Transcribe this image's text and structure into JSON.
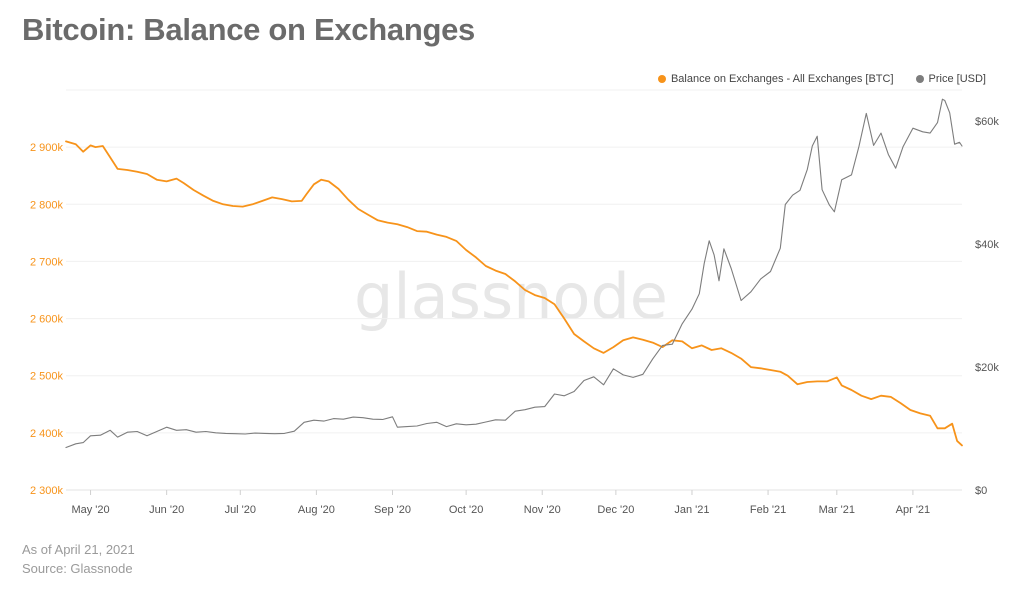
{
  "title": "Bitcoin: Balance on Exchanges",
  "legend": [
    {
      "label": "Balance on Exchanges - All Exchanges [BTC]",
      "color": "#f7931a"
    },
    {
      "label": "Price [USD]",
      "color": "#7d7d7d"
    }
  ],
  "watermark": "glassnode",
  "footer": {
    "as_of": "As of April 21, 2021",
    "source": "Source: Glassnode"
  },
  "chart_data": {
    "type": "line",
    "x_tick_labels": [
      "May '20",
      "Jun '20",
      "Jul '20",
      "Aug '20",
      "Sep '20",
      "Oct '20",
      "Nov '20",
      "Dec '20",
      "Jan '21",
      "Feb '21",
      "Mar '21",
      "Apr '21"
    ],
    "x_tick_dates": [
      "2020-05-01",
      "2020-06-01",
      "2020-07-01",
      "2020-08-01",
      "2020-09-01",
      "2020-10-01",
      "2020-11-01",
      "2020-12-01",
      "2021-01-01",
      "2021-02-01",
      "2021-03-01",
      "2021-04-01"
    ],
    "xlim": [
      "2020-04-21",
      "2021-04-21"
    ],
    "y_left": {
      "ticks": [
        "2 300k",
        "2 400k",
        "2 500k",
        "2 600k",
        "2 700k",
        "2 800k",
        "2 900k"
      ],
      "ylim": [
        2300000,
        3000000
      ],
      "color": "#f7931a"
    },
    "y_right": {
      "ticks": [
        "$0",
        "$20k",
        "$40k",
        "$60k"
      ],
      "ylim": [
        0,
        65000
      ],
      "color": "#555555"
    },
    "grid": true,
    "legend_position": "top-right",
    "series": [
      {
        "name": "Balance on Exchanges - All Exchanges [BTC]",
        "axis": "left",
        "color": "#f7931a",
        "points": [
          [
            "2020-04-21",
            2910000
          ],
          [
            "2020-04-25",
            2905000
          ],
          [
            "2020-04-28",
            2892000
          ],
          [
            "2020-05-01",
            2903000
          ],
          [
            "2020-05-03",
            2900000
          ],
          [
            "2020-05-06",
            2902000
          ],
          [
            "2020-05-09",
            2882000
          ],
          [
            "2020-05-12",
            2862000
          ],
          [
            "2020-05-16",
            2860000
          ],
          [
            "2020-05-20",
            2857000
          ],
          [
            "2020-05-24",
            2853000
          ],
          [
            "2020-05-28",
            2843000
          ],
          [
            "2020-06-01",
            2840000
          ],
          [
            "2020-06-05",
            2845000
          ],
          [
            "2020-06-08",
            2837000
          ],
          [
            "2020-06-12",
            2825000
          ],
          [
            "2020-06-16",
            2815000
          ],
          [
            "2020-06-20",
            2806000
          ],
          [
            "2020-06-24",
            2800000
          ],
          [
            "2020-06-28",
            2797000
          ],
          [
            "2020-07-02",
            2796000
          ],
          [
            "2020-07-06",
            2800000
          ],
          [
            "2020-07-10",
            2806000
          ],
          [
            "2020-07-14",
            2812000
          ],
          [
            "2020-07-18",
            2809000
          ],
          [
            "2020-07-22",
            2805000
          ],
          [
            "2020-07-26",
            2806000
          ],
          [
            "2020-07-28",
            2818000
          ],
          [
            "2020-07-31",
            2835000
          ],
          [
            "2020-08-03",
            2843000
          ],
          [
            "2020-08-06",
            2840000
          ],
          [
            "2020-08-10",
            2827000
          ],
          [
            "2020-08-14",
            2808000
          ],
          [
            "2020-08-18",
            2792000
          ],
          [
            "2020-08-22",
            2782000
          ],
          [
            "2020-08-26",
            2772000
          ],
          [
            "2020-08-30",
            2768000
          ],
          [
            "2020-09-03",
            2765000
          ],
          [
            "2020-09-07",
            2760000
          ],
          [
            "2020-09-11",
            2753000
          ],
          [
            "2020-09-15",
            2752000
          ],
          [
            "2020-09-19",
            2747000
          ],
          [
            "2020-09-23",
            2743000
          ],
          [
            "2020-09-27",
            2736000
          ],
          [
            "2020-10-01",
            2720000
          ],
          [
            "2020-10-05",
            2707000
          ],
          [
            "2020-10-09",
            2692000
          ],
          [
            "2020-10-13",
            2684000
          ],
          [
            "2020-10-17",
            2678000
          ],
          [
            "2020-10-21",
            2665000
          ],
          [
            "2020-10-25",
            2650000
          ],
          [
            "2020-10-29",
            2641000
          ],
          [
            "2020-11-02",
            2636000
          ],
          [
            "2020-11-06",
            2625000
          ],
          [
            "2020-11-10",
            2600000
          ],
          [
            "2020-11-14",
            2573000
          ],
          [
            "2020-11-18",
            2560000
          ],
          [
            "2020-11-22",
            2548000
          ],
          [
            "2020-11-26",
            2540000
          ],
          [
            "2020-11-30",
            2550000
          ],
          [
            "2020-12-04",
            2562000
          ],
          [
            "2020-12-08",
            2567000
          ],
          [
            "2020-12-12",
            2563000
          ],
          [
            "2020-12-16",
            2558000
          ],
          [
            "2020-12-20",
            2550000
          ],
          [
            "2020-12-24",
            2562000
          ],
          [
            "2020-12-28",
            2560000
          ],
          [
            "2021-01-01",
            2548000
          ],
          [
            "2021-01-05",
            2553000
          ],
          [
            "2021-01-09",
            2545000
          ],
          [
            "2021-01-13",
            2548000
          ],
          [
            "2021-01-17",
            2540000
          ],
          [
            "2021-01-21",
            2530000
          ],
          [
            "2021-01-25",
            2515000
          ],
          [
            "2021-01-29",
            2513000
          ],
          [
            "2021-02-02",
            2510000
          ],
          [
            "2021-02-06",
            2507000
          ],
          [
            "2021-02-09",
            2500000
          ],
          [
            "2021-02-13",
            2485000
          ],
          [
            "2021-02-17",
            2489000
          ],
          [
            "2021-02-21",
            2490000
          ],
          [
            "2021-02-25",
            2490000
          ],
          [
            "2021-03-01",
            2497000
          ],
          [
            "2021-03-03",
            2483000
          ],
          [
            "2021-03-07",
            2475000
          ],
          [
            "2021-03-11",
            2465000
          ],
          [
            "2021-03-15",
            2459000
          ],
          [
            "2021-03-19",
            2465000
          ],
          [
            "2021-03-23",
            2463000
          ],
          [
            "2021-03-27",
            2452000
          ],
          [
            "2021-03-31",
            2440000
          ],
          [
            "2021-04-04",
            2434000
          ],
          [
            "2021-04-08",
            2430000
          ],
          [
            "2021-04-11",
            2408000
          ],
          [
            "2021-04-14",
            2408000
          ],
          [
            "2021-04-17",
            2416000
          ],
          [
            "2021-04-19",
            2386000
          ],
          [
            "2021-04-21",
            2378000
          ]
        ]
      },
      {
        "name": "Price [USD]",
        "axis": "right",
        "color": "#7d7d7d",
        "points": [
          [
            "2020-04-21",
            6900
          ],
          [
            "2020-04-25",
            7500
          ],
          [
            "2020-04-28",
            7700
          ],
          [
            "2020-05-01",
            8800
          ],
          [
            "2020-05-05",
            8900
          ],
          [
            "2020-05-09",
            9700
          ],
          [
            "2020-05-12",
            8600
          ],
          [
            "2020-05-16",
            9400
          ],
          [
            "2020-05-20",
            9500
          ],
          [
            "2020-05-24",
            8800
          ],
          [
            "2020-05-28",
            9500
          ],
          [
            "2020-06-01",
            10200
          ],
          [
            "2020-06-05",
            9700
          ],
          [
            "2020-06-09",
            9800
          ],
          [
            "2020-06-13",
            9400
          ],
          [
            "2020-06-17",
            9500
          ],
          [
            "2020-06-21",
            9300
          ],
          [
            "2020-06-25",
            9200
          ],
          [
            "2020-06-29",
            9150
          ],
          [
            "2020-07-03",
            9100
          ],
          [
            "2020-07-07",
            9250
          ],
          [
            "2020-07-11",
            9200
          ],
          [
            "2020-07-15",
            9150
          ],
          [
            "2020-07-19",
            9200
          ],
          [
            "2020-07-23",
            9550
          ],
          [
            "2020-07-27",
            11000
          ],
          [
            "2020-07-31",
            11350
          ],
          [
            "2020-08-04",
            11200
          ],
          [
            "2020-08-08",
            11600
          ],
          [
            "2020-08-12",
            11500
          ],
          [
            "2020-08-16",
            11850
          ],
          [
            "2020-08-20",
            11750
          ],
          [
            "2020-08-24",
            11500
          ],
          [
            "2020-08-28",
            11450
          ],
          [
            "2020-09-01",
            11900
          ],
          [
            "2020-09-03",
            10200
          ],
          [
            "2020-09-07",
            10300
          ],
          [
            "2020-09-11",
            10400
          ],
          [
            "2020-09-15",
            10800
          ],
          [
            "2020-09-19",
            11000
          ],
          [
            "2020-09-23",
            10300
          ],
          [
            "2020-09-27",
            10750
          ],
          [
            "2020-10-01",
            10600
          ],
          [
            "2020-10-05",
            10700
          ],
          [
            "2020-10-09",
            11050
          ],
          [
            "2020-10-13",
            11400
          ],
          [
            "2020-10-17",
            11350
          ],
          [
            "2020-10-21",
            12800
          ],
          [
            "2020-10-25",
            13050
          ],
          [
            "2020-10-29",
            13450
          ],
          [
            "2020-11-02",
            13550
          ],
          [
            "2020-11-06",
            15600
          ],
          [
            "2020-11-10",
            15300
          ],
          [
            "2020-11-14",
            16000
          ],
          [
            "2020-11-18",
            17800
          ],
          [
            "2020-11-22",
            18400
          ],
          [
            "2020-11-26",
            17100
          ],
          [
            "2020-11-30",
            19700
          ],
          [
            "2020-12-04",
            18700
          ],
          [
            "2020-12-08",
            18300
          ],
          [
            "2020-12-12",
            18800
          ],
          [
            "2020-12-16",
            21300
          ],
          [
            "2020-12-20",
            23500
          ],
          [
            "2020-12-24",
            23700
          ],
          [
            "2020-12-28",
            27000
          ],
          [
            "2021-01-01",
            29400
          ],
          [
            "2021-01-04",
            31900
          ],
          [
            "2021-01-06",
            36800
          ],
          [
            "2021-01-08",
            40500
          ],
          [
            "2021-01-10",
            38200
          ],
          [
            "2021-01-12",
            34000
          ],
          [
            "2021-01-14",
            39200
          ],
          [
            "2021-01-17",
            36000
          ],
          [
            "2021-01-21",
            30800
          ],
          [
            "2021-01-25",
            32200
          ],
          [
            "2021-01-29",
            34300
          ],
          [
            "2021-02-02",
            35500
          ],
          [
            "2021-02-06",
            39300
          ],
          [
            "2021-02-08",
            46400
          ],
          [
            "2021-02-11",
            47900
          ],
          [
            "2021-02-14",
            48700
          ],
          [
            "2021-02-17",
            52100
          ],
          [
            "2021-02-19",
            55900
          ],
          [
            "2021-02-21",
            57500
          ],
          [
            "2021-02-23",
            48800
          ],
          [
            "2021-02-26",
            46300
          ],
          [
            "2021-02-28",
            45200
          ],
          [
            "2021-03-03",
            50400
          ],
          [
            "2021-03-07",
            51200
          ],
          [
            "2021-03-10",
            55800
          ],
          [
            "2021-03-13",
            61200
          ],
          [
            "2021-03-16",
            56000
          ],
          [
            "2021-03-19",
            58000
          ],
          [
            "2021-03-22",
            54500
          ],
          [
            "2021-03-25",
            52300
          ],
          [
            "2021-03-28",
            55800
          ],
          [
            "2021-04-01",
            58800
          ],
          [
            "2021-04-05",
            58200
          ],
          [
            "2021-04-08",
            58000
          ],
          [
            "2021-04-11",
            59700
          ],
          [
            "2021-04-13",
            63500
          ],
          [
            "2021-04-14",
            63300
          ],
          [
            "2021-04-16",
            61300
          ],
          [
            "2021-04-18",
            56200
          ],
          [
            "2021-04-20",
            56500
          ],
          [
            "2021-04-21",
            55900
          ]
        ]
      }
    ]
  }
}
